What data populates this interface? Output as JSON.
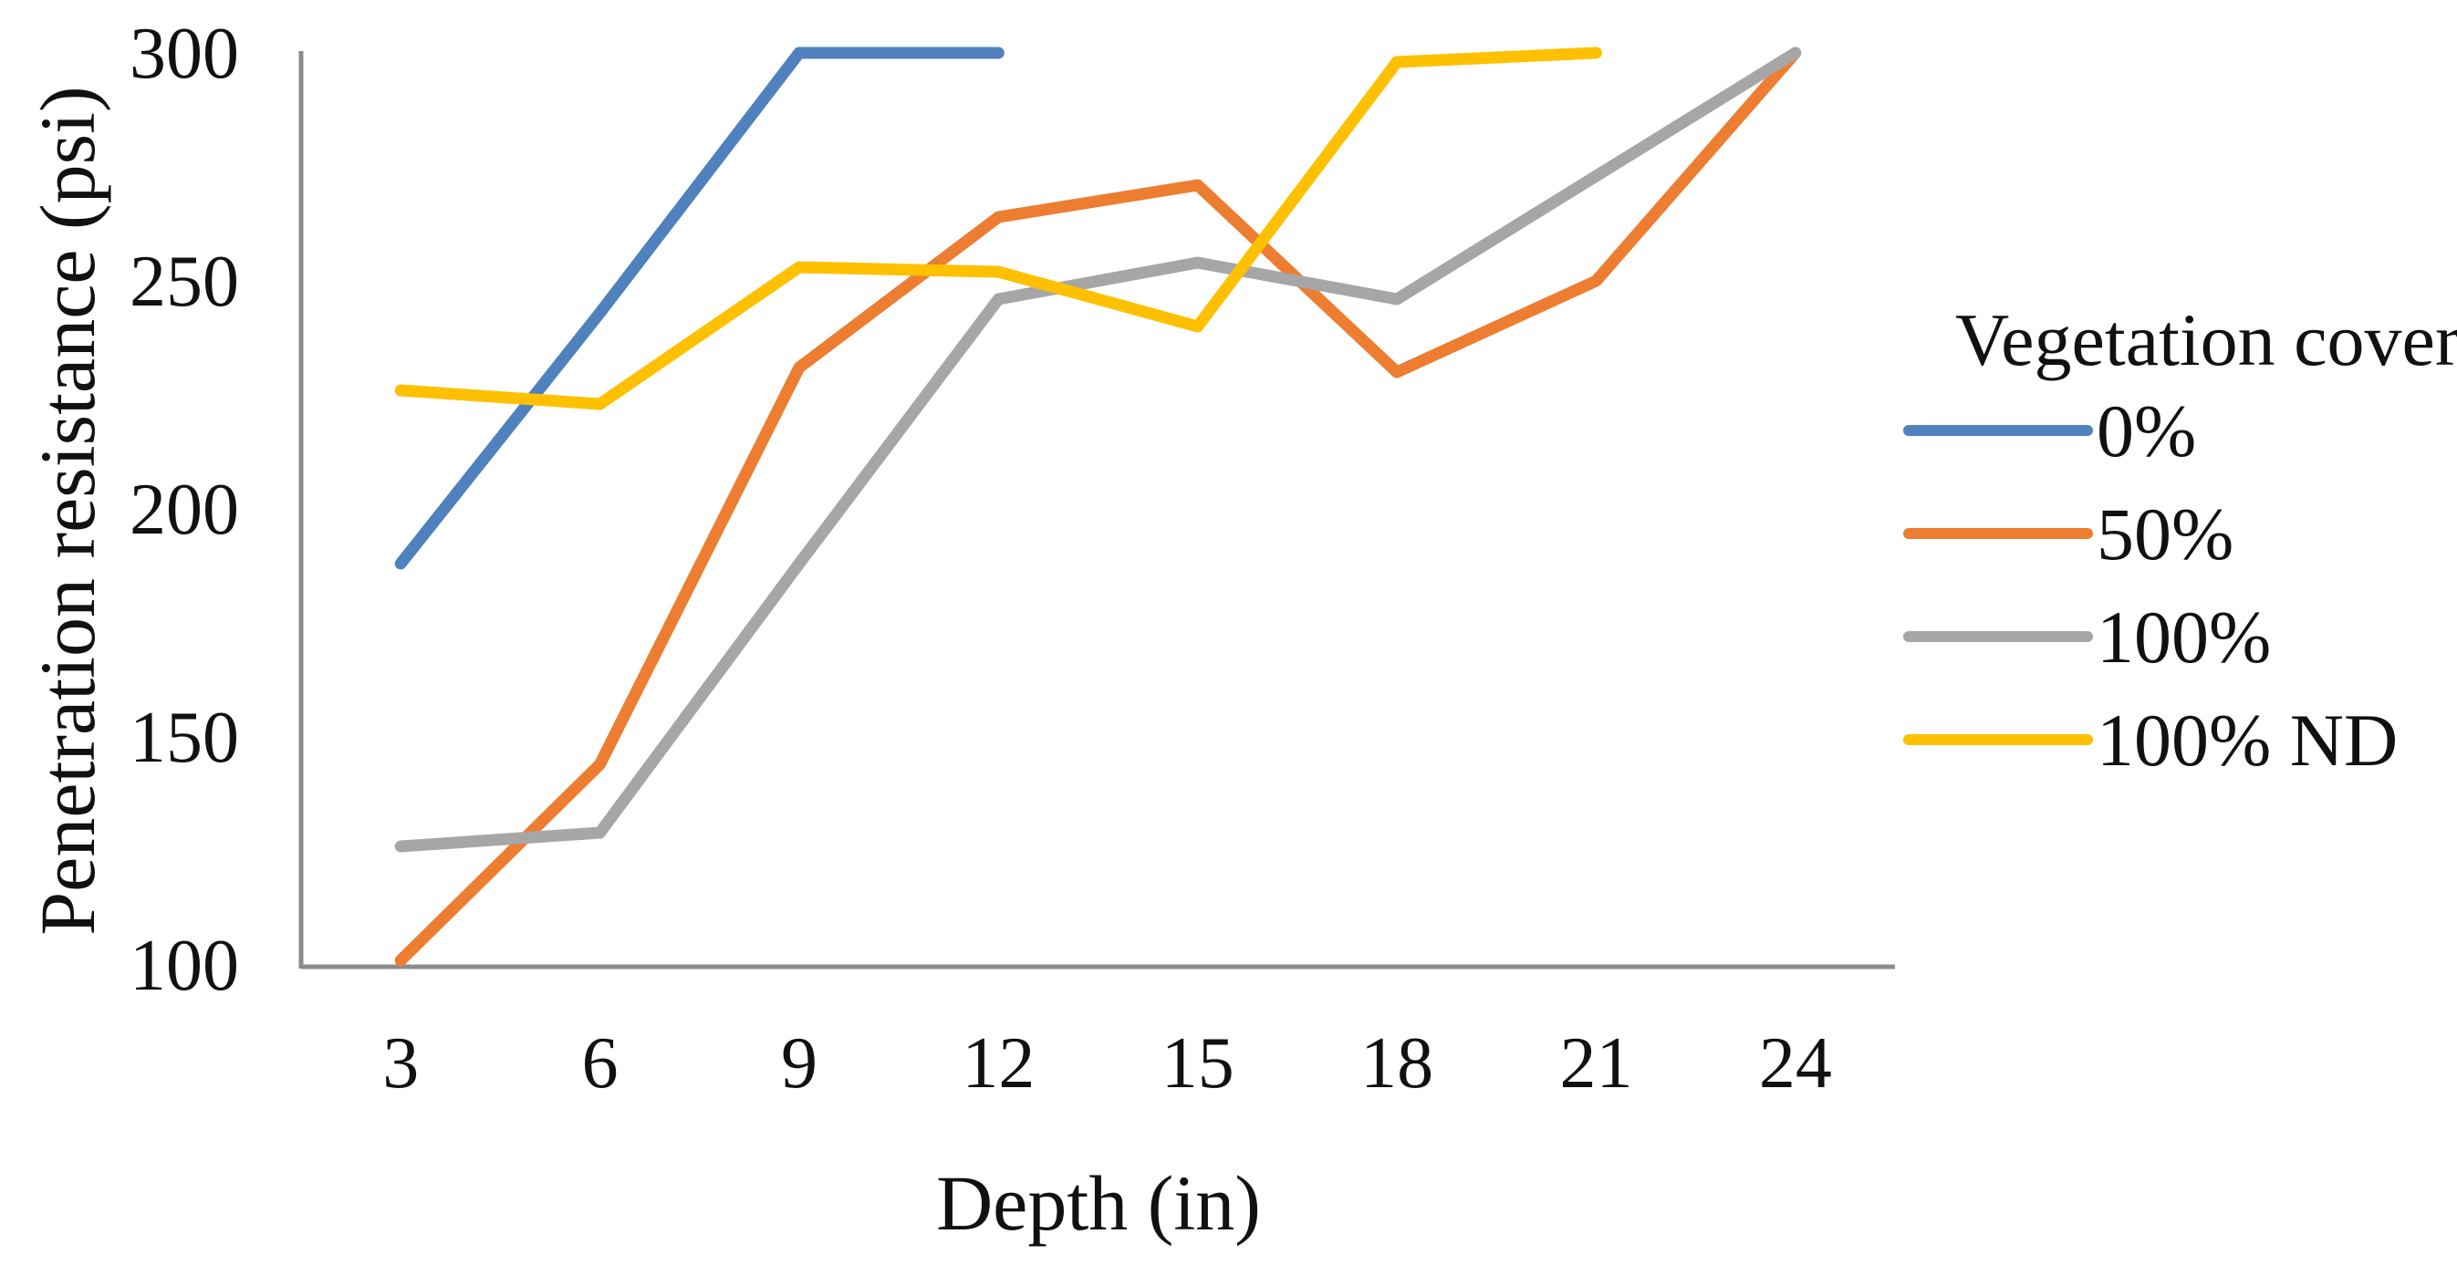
{
  "chart_data": {
    "type": "line",
    "title": "",
    "xlabel": "Depth (in)",
    "ylabel": "Penetration resistance (psi)",
    "categories": [
      3,
      6,
      9,
      12,
      15,
      18,
      21,
      24
    ],
    "y_ticks": [
      300,
      250,
      200,
      150,
      100
    ],
    "ylim": [
      100,
      300
    ],
    "grid": false,
    "legend": {
      "title": "Vegetation cover",
      "position": "right",
      "entries": [
        "0%",
        "50%",
        "100%",
        "100% ND"
      ]
    },
    "series": [
      {
        "name": "0%",
        "color": "#4E81BD",
        "values": [
          188,
          243,
          300,
          300
        ]
      },
      {
        "name": "50%",
        "color": "#ED7D31",
        "values": [
          101,
          144,
          231,
          264,
          271,
          230,
          250,
          300
        ]
      },
      {
        "name": "100%",
        "color": "#A6A6A6",
        "values": [
          126,
          129,
          188,
          246,
          254,
          246,
          273,
          300
        ]
      },
      {
        "name": "100% ND",
        "color": "#FFC000",
        "values": [
          226,
          223,
          253,
          252,
          240,
          298,
          300
        ]
      }
    ],
    "axis_color": "#8C8C8C",
    "text_color": "#111111"
  }
}
